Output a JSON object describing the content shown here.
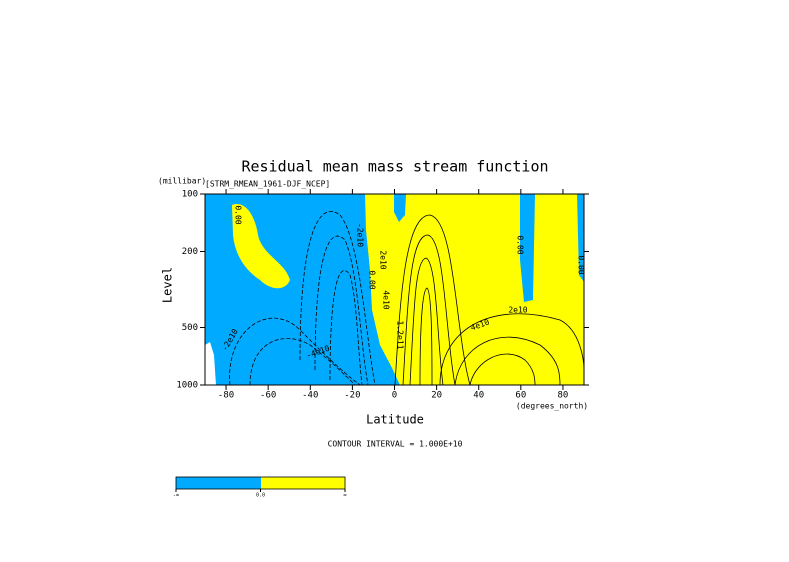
{
  "chart_data": {
    "type": "contour",
    "title": "Residual mean mass stream function",
    "subtitle": "[STRM_RMEAN_1961-DJF_NCEP]",
    "y_unit": "(millibar)",
    "y_label": "Level",
    "x_label": "Latitude",
    "x_unit": "(degrees_north)",
    "footnote": "CONTOUR INTERVAL = 1.000E+10",
    "xlim": [
      -90,
      90
    ],
    "xticks": [
      -80,
      -60,
      -40,
      -20,
      0,
      20,
      40,
      60,
      80
    ],
    "ylim": [
      1000,
      100
    ],
    "yticks": [
      100,
      200,
      500,
      1000
    ],
    "ylog": true,
    "negative_color": "#00aaff",
    "positive_color": "#ffff00",
    "contour_labels": [
      "0.00",
      "-2e10",
      "-4e10",
      "-2e10",
      "0.00",
      "2e10",
      "4e10",
      "1.2e11",
      "2e10",
      "4e10",
      "0.00",
      "0.00"
    ],
    "colorbar_labels": [
      "-∞",
      "0.0",
      "∞"
    ]
  }
}
